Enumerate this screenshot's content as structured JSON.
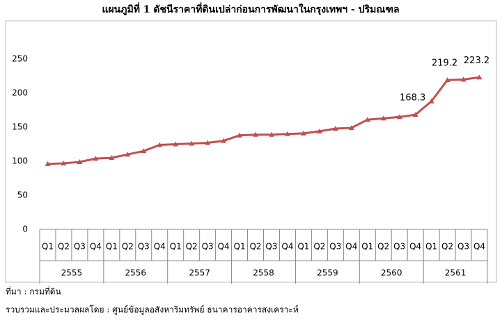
{
  "chart_data": {
    "type": "line",
    "title": "แผนภูมิที่ 1 ดัชนีราคาที่ดินเปล่าก่อนการพัฒนาในกรุงเทพฯ - ปริมณฑล",
    "categories": [
      "Q1",
      "Q2",
      "Q3",
      "Q4",
      "Q1",
      "Q2",
      "Q3",
      "Q4",
      "Q1",
      "Q2",
      "Q3",
      "Q4",
      "Q1",
      "Q2",
      "Q3",
      "Q4",
      "Q1",
      "Q2",
      "Q3",
      "Q4",
      "Q1",
      "Q2",
      "Q3",
      "Q4",
      "Q1",
      "Q2",
      "Q3",
      "Q4"
    ],
    "category_groups": [
      "2555",
      "2556",
      "2557",
      "2558",
      "2559",
      "2560",
      "2561"
    ],
    "values": [
      96,
      97,
      99,
      104,
      105,
      110,
      115,
      124,
      125,
      126,
      127,
      130,
      138,
      139,
      139,
      140,
      141,
      144,
      148,
      149,
      161,
      163,
      165,
      168.3,
      188,
      219.2,
      220,
      223.2
    ],
    "value_labels": [
      null,
      null,
      null,
      null,
      null,
      null,
      null,
      null,
      null,
      null,
      null,
      null,
      null,
      null,
      null,
      null,
      null,
      null,
      null,
      null,
      null,
      null,
      null,
      "168.3",
      null,
      "219.2",
      null,
      "223.2"
    ],
    "color": "#c0504d",
    "ylim": [
      0,
      250
    ],
    "yticks": [
      0,
      50,
      100,
      150,
      200,
      250
    ],
    "grid": false
  },
  "notes": [
    "ที่มา : กรมที่ดิน",
    "รวบรวมและประมวลผลโดย : ศูนย์ข้อมูลอสังหาริมทรัพย์ ธนาคารอาคารสงเคราะห์"
  ]
}
